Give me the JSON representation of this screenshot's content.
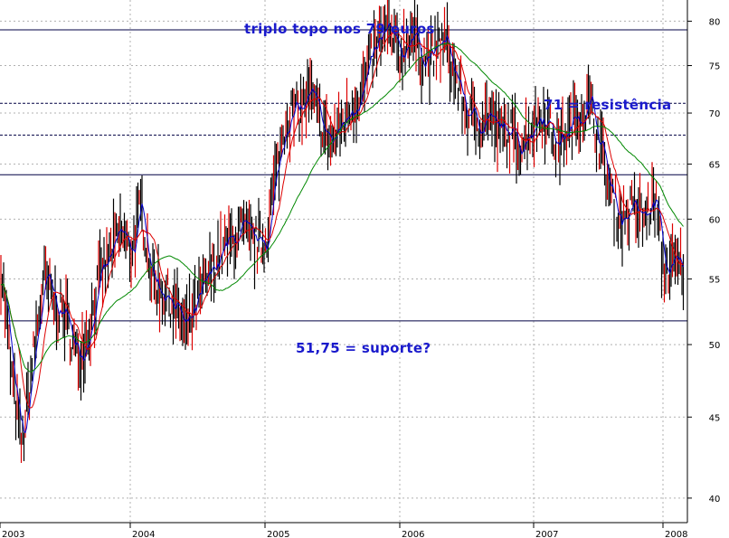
{
  "chart_data": {
    "type": "line",
    "subtype": "candlestick-with-moving-averages",
    "title": "",
    "xlabel": "",
    "ylabel": "",
    "y_scale": "log",
    "ylim": [
      38.6,
      82.5
    ],
    "grid": true,
    "legend": "none",
    "y_ticks": [
      40,
      45,
      50,
      55,
      60,
      65,
      70,
      75,
      80
    ],
    "x_ticks": [
      "2003",
      "2004",
      "2005",
      "2006",
      "2007",
      "2008"
    ],
    "x_range": [
      "2003-01",
      "2008-02"
    ],
    "price": {
      "x": [
        "2003-01",
        "2003-02",
        "2003-03",
        "2003-04",
        "2003-05",
        "2003-06",
        "2003-07",
        "2003-08",
        "2003-09",
        "2003-10",
        "2003-11",
        "2003-12",
        "2004-01",
        "2004-02",
        "2004-03",
        "2004-04",
        "2004-05",
        "2004-06",
        "2004-07",
        "2004-08",
        "2004-09",
        "2004-10",
        "2004-11",
        "2004-12",
        "2005-01",
        "2005-02",
        "2005-03",
        "2005-04",
        "2005-05",
        "2005-06",
        "2005-07",
        "2005-08",
        "2005-09",
        "2005-10",
        "2005-11",
        "2005-12",
        "2006-01",
        "2006-02",
        "2006-03",
        "2006-04",
        "2006-05",
        "2006-06",
        "2006-07",
        "2006-08",
        "2006-09",
        "2006-10",
        "2006-11",
        "2006-12",
        "2007-01",
        "2007-02",
        "2007-03",
        "2007-04",
        "2007-05",
        "2007-06",
        "2007-07",
        "2007-08",
        "2007-09",
        "2007-10",
        "2007-11",
        "2007-12",
        "2008-01"
      ],
      "values": [
        57,
        48,
        43,
        49,
        55,
        53,
        52,
        49,
        51,
        55,
        57,
        59,
        57,
        61,
        55,
        54,
        53,
        51,
        53,
        55,
        57,
        58,
        59,
        58,
        58,
        64,
        70,
        70,
        72,
        69,
        67,
        69,
        71,
        73,
        77,
        79,
        76,
        79,
        76,
        76,
        78,
        74,
        70,
        69,
        70,
        68,
        68,
        67,
        69,
        70,
        67,
        68,
        70,
        71,
        67,
        62,
        60,
        61,
        60,
        62,
        56
      ]
    },
    "horizontal_lines": [
      {
        "value": 79,
        "style": "solid"
      },
      {
        "value": 71,
        "style": "dashed"
      },
      {
        "value": 67.8,
        "style": "dashed"
      },
      {
        "value": 64,
        "style": "solid"
      },
      {
        "value": 51.75,
        "style": "solid"
      }
    ],
    "annotations": [
      {
        "text": "triplo topo nos 79 euros"
      },
      {
        "text": "71 = resistência"
      },
      {
        "text": "51,75 = suporte?"
      }
    ],
    "colors": {
      "price": "#000000",
      "ma_short": "#0000cc",
      "ma_medium": "#dd0000",
      "ma_long": "#008800",
      "hlines": "#000044",
      "annotation": "#1a1acc",
      "grid": "#b0b0b0"
    }
  }
}
